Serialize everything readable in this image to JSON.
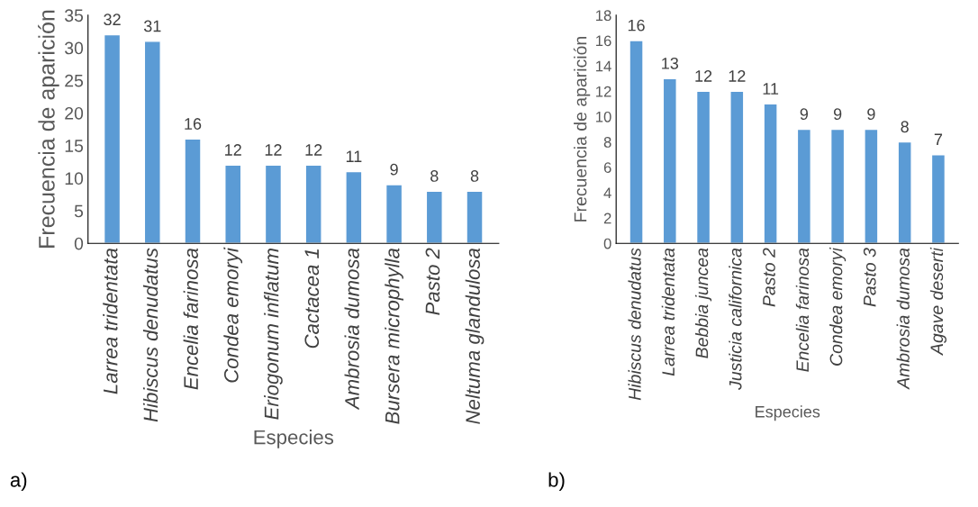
{
  "chart_data": [
    {
      "type": "bar",
      "categories": [
        "Larrea tridentata",
        "Hibiscus denudatus",
        "Encelia farinosa",
        "Condea emoryi",
        "Eriogonum inflatum",
        "Cactacea 1",
        "Ambrosia dumosa",
        "Bursera microphylla",
        "Pasto 2",
        "Neltuma glandulosa"
      ],
      "values": [
        32,
        31,
        16,
        12,
        12,
        12,
        11,
        9,
        8,
        8
      ],
      "color": "#5b9bd5",
      "ylim": [
        0,
        35
      ],
      "yticks": [
        0,
        5,
        10,
        15,
        20,
        25,
        30,
        35
      ],
      "xlabel": "Especies",
      "ylabel": "Frecuencia de aparición",
      "data_labels": true,
      "grid": false,
      "annotations": [
        "a)"
      ]
    },
    {
      "type": "bar",
      "categories": [
        "Hibiscus denudatus",
        "Larrea tridentata",
        "Bebbia juncea",
        "Justicia californica",
        "Pasto 2",
        "Encelia farinosa",
        "Condea emoryi",
        "Pasto 3",
        "Ambrosia dumosa",
        "Agave deserti"
      ],
      "values": [
        16,
        13,
        12,
        12,
        11,
        9,
        9,
        9,
        8,
        7
      ],
      "color": "#5b9bd5",
      "ylim": [
        0,
        18
      ],
      "yticks": [
        0,
        2,
        4,
        6,
        8,
        10,
        12,
        14,
        16,
        18
      ],
      "xlabel": "Especies",
      "ylabel": "Frecuencia de aparición",
      "data_labels": true,
      "grid": false,
      "annotations": [
        "b)"
      ]
    }
  ]
}
